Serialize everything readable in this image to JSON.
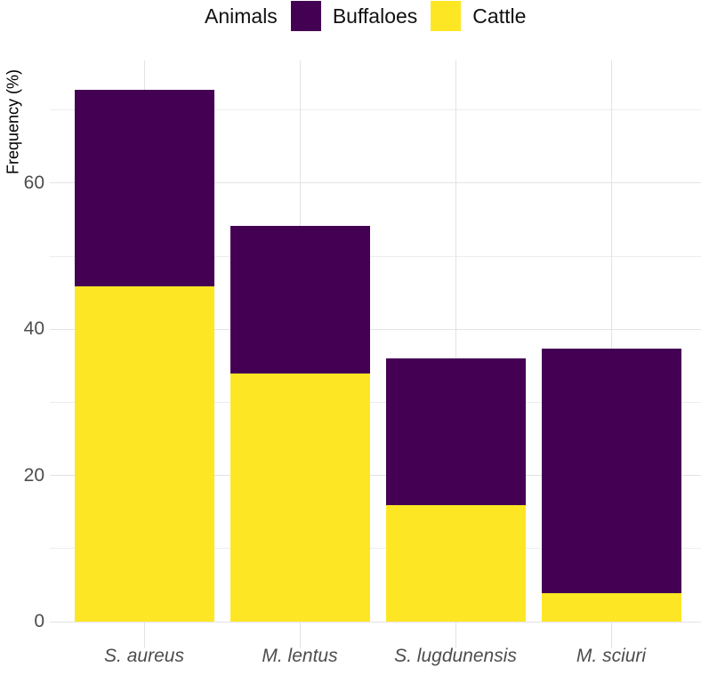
{
  "legend": {
    "title": "Animals",
    "items": [
      {
        "label": "Buffaloes",
        "color": "#440154"
      },
      {
        "label": "Cattle",
        "color": "#FDE725"
      }
    ]
  },
  "chart_data": {
    "type": "bar",
    "stacked": true,
    "title": "",
    "xlabel": "",
    "ylabel": "Frequency (%)",
    "categories": [
      "S. aureus",
      "M. lentus",
      "S. lugdunensis",
      "M. sciuri"
    ],
    "series": [
      {
        "name": "Cattle",
        "color": "#FDE725",
        "values": [
          45.9,
          34.0,
          16.0,
          3.9
        ]
      },
      {
        "name": "Buffaloes",
        "color": "#440154",
        "values": [
          26.9,
          20.2,
          20.0,
          33.5
        ]
      }
    ],
    "totals": [
      72.8,
      54.2,
      36.0,
      37.4
    ],
    "yticks": [
      0,
      20,
      40,
      60
    ],
    "yticks_minor": [
      10,
      30,
      50,
      70
    ],
    "ylim": [
      -3.7,
      76.8
    ],
    "grid": true,
    "legend_position": "top",
    "background": "#ffffff",
    "gridline_color": "#e3e3e3",
    "tick_label_color": "#4d4d4d"
  }
}
